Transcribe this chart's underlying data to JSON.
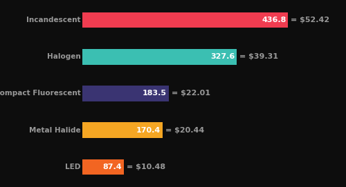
{
  "categories": [
    "Incandescent",
    "Halogen",
    "Compact Fluorescent",
    "Metal Halide",
    "LED"
  ],
  "values": [
    436.8,
    327.6,
    183.5,
    170.4,
    87.4
  ],
  "costs": [
    "$52.42",
    "$39.31",
    "$22.01",
    "$20.44",
    "$10.48"
  ],
  "bar_colors": [
    "#f03c50",
    "#3bbfb2",
    "#3a3472",
    "#f5a623",
    "#f26522"
  ],
  "background_color": "#0d0d0d",
  "label_color": "#999999",
  "value_text_color": "#ffffff",
  "cost_text_color": "#999999",
  "figsize": [
    5.0,
    2.71
  ],
  "dpi": 100,
  "bar_height": 0.42,
  "label_fontsize": 7.5,
  "value_fontsize": 8.0,
  "cost_fontsize": 8.0
}
